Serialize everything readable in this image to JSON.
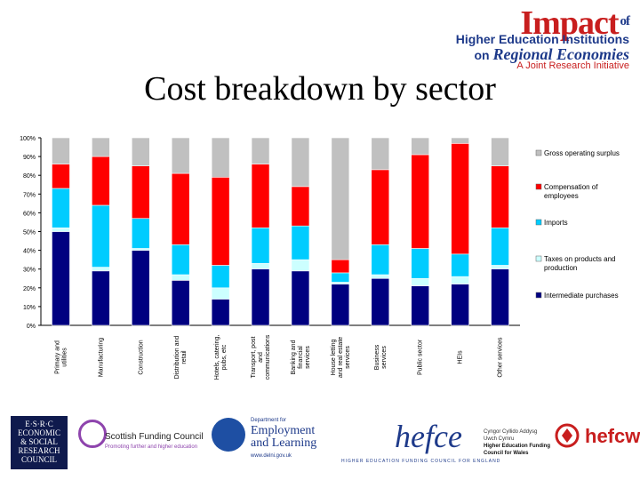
{
  "header": {
    "logo_impact": "Impact",
    "logo_of": "of",
    "logo_line1": "Higher Education Institutions",
    "logo_line2_prefix": "on",
    "logo_line2_main": "Regional Economies",
    "logo_line3": "A Joint Research Initiative",
    "title": "Cost breakdown by sector"
  },
  "chart_data": {
    "type": "bar",
    "stacked": true,
    "title": "",
    "xlabel": "",
    "ylabel": "",
    "ylim": [
      0,
      100
    ],
    "y_ticks": [
      "0%",
      "10%",
      "20%",
      "30%",
      "40%",
      "50%",
      "60%",
      "70%",
      "80%",
      "90%",
      "100%"
    ],
    "categories": [
      [
        "Primary and",
        "utilities"
      ],
      [
        "Manufacturing"
      ],
      [
        "Construction"
      ],
      [
        "Distribution and",
        "retail"
      ],
      [
        "Hotels, catering,",
        "pubs, etc"
      ],
      [
        "Transport, post",
        "and",
        "communications"
      ],
      [
        "Banking and",
        "financial",
        "services"
      ],
      [
        "House letting",
        "and real estate",
        "services"
      ],
      [
        "Business",
        "services"
      ],
      [
        "Public sector"
      ],
      [
        "HEIs"
      ],
      [
        "Other services"
      ]
    ],
    "series": [
      {
        "name": "Intermediate purchases",
        "color": "#000080",
        "values": [
          50,
          29,
          40,
          24,
          14,
          30,
          29,
          22,
          25,
          21,
          22,
          30
        ]
      },
      {
        "name": "Taxes on products and production",
        "color": "#ccffff",
        "values": [
          2,
          2,
          1,
          3,
          6,
          3,
          6,
          1,
          2,
          4,
          4,
          2
        ]
      },
      {
        "name": "Imports",
        "color": "#00ccff",
        "values": [
          21,
          33,
          16,
          16,
          12,
          19,
          18,
          5,
          16,
          16,
          12,
          20
        ]
      },
      {
        "name": "Compensation of employees",
        "color": "#ff0000",
        "values": [
          13,
          26,
          28,
          38,
          47,
          34,
          21,
          7,
          40,
          50,
          59,
          33
        ]
      },
      {
        "name": "Gross operating surplus",
        "color": "#c0c0c0",
        "values": [
          14,
          10,
          15,
          19,
          21,
          14,
          26,
          65,
          17,
          9,
          3,
          15
        ]
      }
    ],
    "legend": [
      {
        "lines": [
          "Gross operating surplus"
        ],
        "color": "#c0c0c0"
      },
      {
        "lines": [
          "Compensation of",
          "employees"
        ],
        "color": "#ff0000"
      },
      {
        "lines": [
          "Imports"
        ],
        "color": "#00ccff"
      },
      {
        "lines": [
          "Taxes on products and",
          "production"
        ],
        "color": "#ccffff"
      },
      {
        "lines": [
          "Intermediate purchases"
        ],
        "color": "#000080"
      }
    ],
    "legend_position": "right",
    "grid": false
  },
  "footer": {
    "esrc_lines": [
      "E·S·R·C",
      "ECONOMIC",
      "& SOCIAL",
      "RESEARCH",
      "COUNCIL"
    ],
    "sfc_name": "Scottish Funding Council",
    "sfc_tag": "Promoting further and higher education",
    "del_small": "Department for",
    "del_big1": "Employment",
    "del_big2": "and Learning",
    "del_url": "www.delni.gov.uk",
    "hefce_word": "hefce",
    "hefce_bar": "HIGHER EDUCATION  FUNDING COUNCIL  FOR ENGLAND",
    "hefcw_welsh1": "Cyngor Cyllido Addysg",
    "hefcw_welsh2": "Uwch Cymru",
    "hefcw_eng1": "Higher Education Funding",
    "hefcw_eng2": "Council for Wales",
    "hefcw_word": "hefcw"
  }
}
